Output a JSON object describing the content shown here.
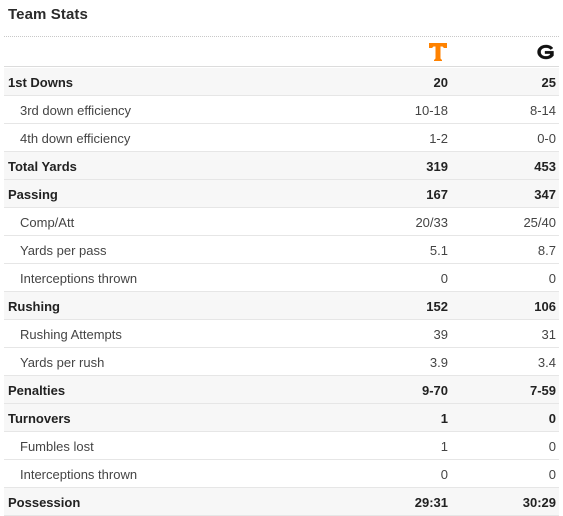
{
  "title": "Team Stats",
  "teams": [
    {
      "logo_letter": "T",
      "color": "#FF8200"
    },
    {
      "logo_letter": "G",
      "color": "#000000"
    }
  ],
  "rows": [
    {
      "type": "main",
      "label": "1st Downs",
      "team1": "20",
      "team2": "25"
    },
    {
      "type": "sub",
      "label": "3rd down efficiency",
      "team1": "10-18",
      "team2": "8-14"
    },
    {
      "type": "sub",
      "label": "4th down efficiency",
      "team1": "1-2",
      "team2": "0-0"
    },
    {
      "type": "main",
      "label": "Total Yards",
      "team1": "319",
      "team2": "453"
    },
    {
      "type": "main",
      "label": "Passing",
      "team1": "167",
      "team2": "347"
    },
    {
      "type": "sub",
      "label": "Comp/Att",
      "team1": "20/33",
      "team2": "25/40"
    },
    {
      "type": "sub",
      "label": "Yards per pass",
      "team1": "5.1",
      "team2": "8.7"
    },
    {
      "type": "sub",
      "label": "Interceptions thrown",
      "team1": "0",
      "team2": "0"
    },
    {
      "type": "main",
      "label": "Rushing",
      "team1": "152",
      "team2": "106"
    },
    {
      "type": "sub",
      "label": "Rushing Attempts",
      "team1": "39",
      "team2": "31"
    },
    {
      "type": "sub",
      "label": "Yards per rush",
      "team1": "3.9",
      "team2": "3.4"
    },
    {
      "type": "main",
      "label": "Penalties",
      "team1": "9-70",
      "team2": "7-59"
    },
    {
      "type": "main",
      "label": "Turnovers",
      "team1": "1",
      "team2": "0"
    },
    {
      "type": "sub",
      "label": "Fumbles lost",
      "team1": "1",
      "team2": "0"
    },
    {
      "type": "sub",
      "label": "Interceptions thrown",
      "team1": "0",
      "team2": "0"
    },
    {
      "type": "main",
      "label": "Possession",
      "team1": "29:31",
      "team2": "30:29"
    }
  ]
}
